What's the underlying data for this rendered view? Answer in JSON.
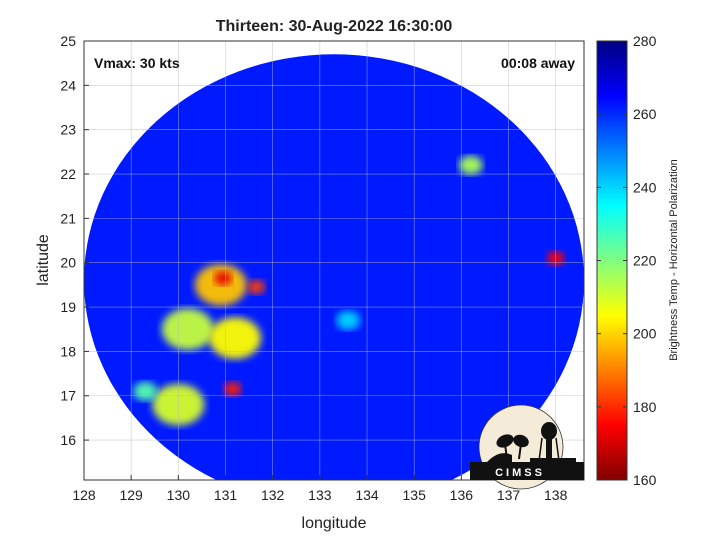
{
  "chart_data": {
    "type": "heatmap",
    "title": "Thirteen: 30-Aug-2022 16:30:00",
    "xlabel": "longitude",
    "ylabel": "latitude",
    "xlim": [
      128,
      138.6
    ],
    "ylim": [
      15.1,
      25
    ],
    "x_ticks": [
      "128",
      "129",
      "130",
      "131",
      "132",
      "133",
      "134",
      "135",
      "136",
      "137",
      "138"
    ],
    "y_ticks": [
      "16",
      "17",
      "18",
      "19",
      "20",
      "21",
      "22",
      "23",
      "24",
      "25"
    ],
    "annotations": {
      "vmax": "Vmax: 30 kts",
      "time_offset": "00:08 away"
    },
    "colorbar": {
      "label": "Brightness Temp - Horizontal Polarization",
      "range": [
        160,
        280
      ],
      "ticks": [
        "160",
        "180",
        "200",
        "220",
        "240",
        "260",
        "280"
      ],
      "colormap": [
        "#800000",
        "#ff0000",
        "#ff8000",
        "#ffff00",
        "#80ff80",
        "#00ffff",
        "#0080ff",
        "#0000ff",
        "#000080"
      ]
    },
    "swath": {
      "center_lon": 133.3,
      "center_lat": 19.6,
      "lon_radius": 5.3,
      "lat_radius": 5.1,
      "background_temp": 262
    },
    "features": [
      {
        "name": "cold cluster north",
        "lon": 130.9,
        "lat": 19.5,
        "temp": 198
      },
      {
        "name": "cold core A",
        "lon": 130.95,
        "lat": 19.65,
        "temp": 172
      },
      {
        "name": "cold core B",
        "lon": 131.65,
        "lat": 19.45,
        "temp": 182
      },
      {
        "name": "cold cluster west",
        "lon": 130.2,
        "lat": 18.5,
        "temp": 212
      },
      {
        "name": "cold cluster south",
        "lon": 131.2,
        "lat": 18.3,
        "temp": 205
      },
      {
        "name": "cell",
        "lon": 131.15,
        "lat": 17.15,
        "temp": 178
      },
      {
        "name": "cell",
        "lon": 130.0,
        "lat": 16.8,
        "temp": 210
      },
      {
        "name": "cell",
        "lon": 129.3,
        "lat": 17.1,
        "temp": 225
      },
      {
        "name": "cell",
        "lon": 138.0,
        "lat": 20.1,
        "temp": 175
      },
      {
        "name": "cell",
        "lon": 136.2,
        "lat": 22.2,
        "temp": 215
      },
      {
        "name": "cell",
        "lon": 133.6,
        "lat": 18.7,
        "temp": 240
      }
    ]
  },
  "logo": {
    "text": "CIMSS"
  }
}
